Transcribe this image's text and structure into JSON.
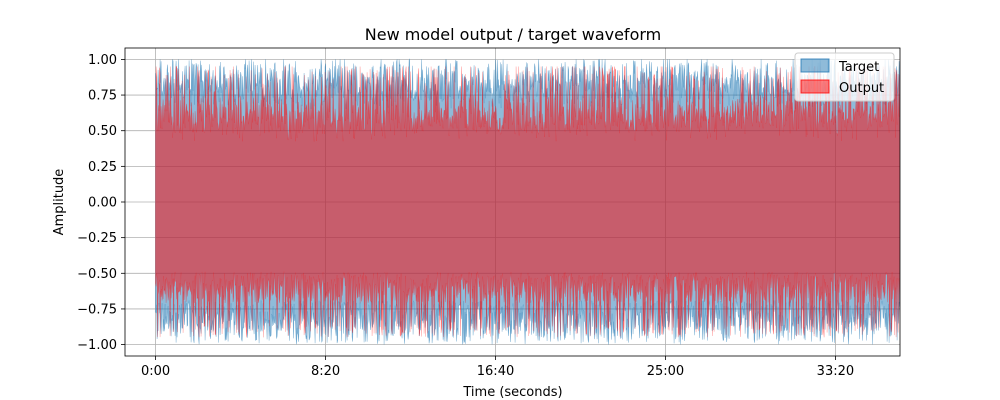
{
  "chart_data": {
    "type": "area",
    "title": "New model output / target waveform",
    "xlabel": "Time (seconds)",
    "ylabel": "Amplitude",
    "xlim": [
      -90,
      2190
    ],
    "ylim": [
      -1.08,
      1.08
    ],
    "x_ticks": [
      {
        "value": 0,
        "label": "0:00"
      },
      {
        "value": 500,
        "label": "8:20"
      },
      {
        "value": 1000,
        "label": "16:40"
      },
      {
        "value": 1500,
        "label": "25:00"
      },
      {
        "value": 2000,
        "label": "33:20"
      }
    ],
    "y_ticks": [
      {
        "value": 1.0,
        "label": "1.00"
      },
      {
        "value": 0.75,
        "label": "0.75"
      },
      {
        "value": 0.5,
        "label": "0.50"
      },
      {
        "value": 0.25,
        "label": "0.25"
      },
      {
        "value": 0.0,
        "label": "0.00"
      },
      {
        "value": -0.25,
        "label": "−0.25"
      },
      {
        "value": -0.5,
        "label": "−0.50"
      },
      {
        "value": -0.75,
        "label": "−0.75"
      },
      {
        "value": -1.0,
        "label": "−1.00"
      }
    ],
    "grid": true,
    "legend_position": "top-right",
    "series": [
      {
        "name": "Target",
        "color": "#1f77b4",
        "opacity": 0.5,
        "x_start": 0,
        "x_end": 2230,
        "envelope_peak": 1.0,
        "envelope_typical": 0.8
      },
      {
        "name": "Output",
        "color": "#ff0000",
        "opacity": 0.5,
        "x_start": 0,
        "x_end": 2230,
        "envelope_peak": 0.95,
        "envelope_typical": 0.6
      }
    ]
  }
}
